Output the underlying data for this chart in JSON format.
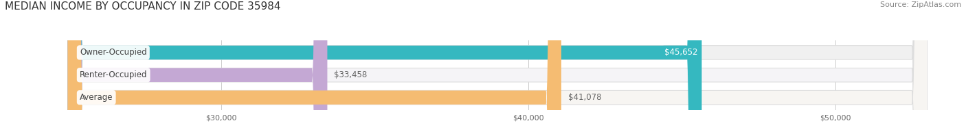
{
  "title": "MEDIAN INCOME BY OCCUPANCY IN ZIP CODE 35984",
  "source": "Source: ZipAtlas.com",
  "categories": [
    "Owner-Occupied",
    "Renter-Occupied",
    "Average"
  ],
  "values": [
    45652,
    33458,
    41078
  ],
  "bar_colors": [
    "#35b8c0",
    "#c4a8d4",
    "#f5bc72"
  ],
  "bar_bg_colors": [
    "#f0f0f0",
    "#f5f4f7",
    "#f7f5f2"
  ],
  "value_labels": [
    "$45,652",
    "$33,458",
    "$41,078"
  ],
  "value_label_inside": [
    true,
    false,
    false
  ],
  "value_label_colors": [
    "#ffffff",
    "#666666",
    "#666666"
  ],
  "x_min": 25000,
  "x_max": 53000,
  "x_ticks": [
    30000,
    40000,
    50000
  ],
  "x_tick_labels": [
    "$30,000",
    "$40,000",
    "$50,000"
  ],
  "bar_height": 0.62,
  "figsize": [
    14.06,
    1.96
  ],
  "dpi": 100,
  "title_fontsize": 11,
  "label_fontsize": 8.5,
  "value_fontsize": 8.5,
  "tick_fontsize": 8,
  "source_fontsize": 8
}
